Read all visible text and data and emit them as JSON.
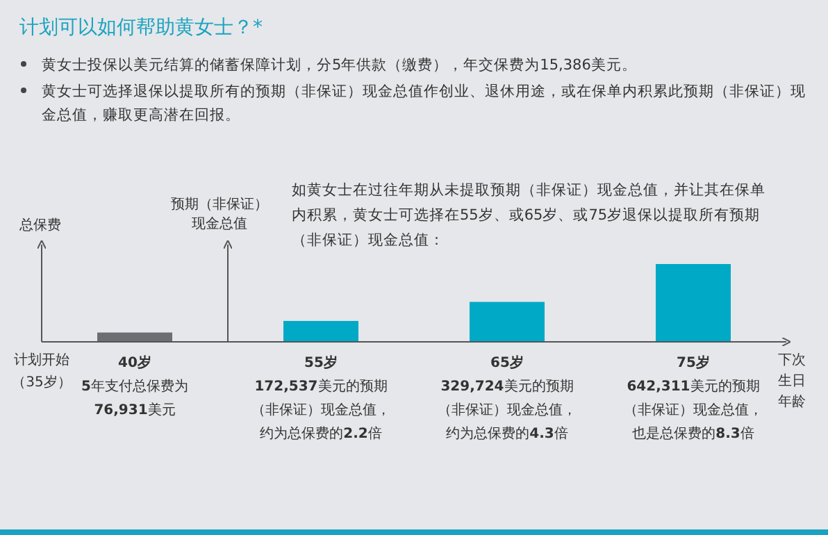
{
  "chart_data": {
    "type": "bar",
    "title": "计划可以如何帮助黄女士？*",
    "annotations": [
      "黄女士投保以美元结算的储蓄保障计划，分5年供款（缴费），年交保费为15,386美元。",
      "黄女士可选择退保以提取所有的预期（非保证）现金总值作创业、退休用途，或在保单内积累此预期（非保证）现金总值，赚取更高潜在回报。",
      "如黄女士在过往年期从未提取预期（非保证）现金总值，并让其在保单内积累，黄女士可选择在55岁、或65岁、或75岁退保以提取所有预期（非保证）现金总值：",
      "计划开始（35岁）"
    ],
    "ylabel": "总保费",
    "y2label": "预期（非保证）现金总值",
    "xlabel": "下次生日年龄",
    "categories": [
      "40岁",
      "55岁",
      "65岁",
      "75岁"
    ],
    "values": [
      76931,
      172537,
      329724,
      642311
    ],
    "colors": [
      "#6d6e73",
      "#00a9c6",
      "#00a9c6",
      "#00a9c6"
    ],
    "value_labels": [
      "5年支付总保费为76,931美元",
      "172,537美元的预期（非保证）现金总值，约为总保费的2.2倍",
      "329,724美元的预期（非保证）现金总值，约为总保费的4.3倍",
      "642,311美元的预期（非保证）现金总值，也是总保费的8.3倍"
    ]
  }
}
